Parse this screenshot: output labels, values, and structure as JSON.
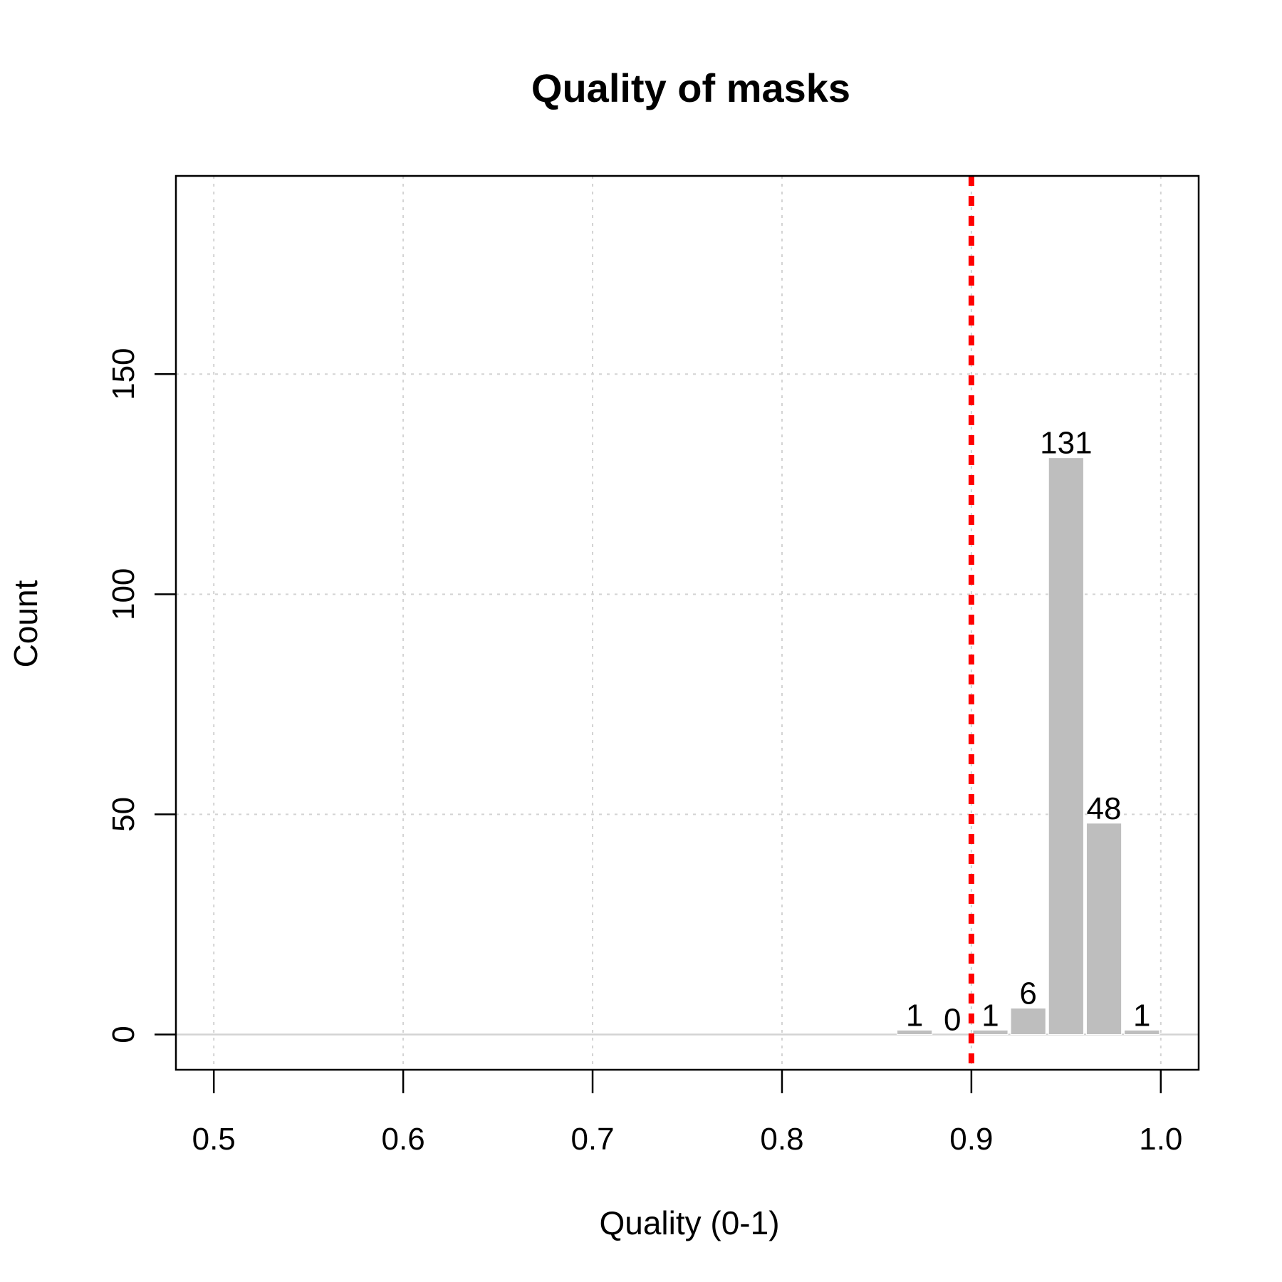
{
  "chart_data": {
    "type": "bar",
    "title": "Quality of masks",
    "xlabel": "Quality (0-1)",
    "ylabel": "Count",
    "xlim": [
      0.48,
      1.02
    ],
    "ylim": [
      -8,
      195
    ],
    "x_ticks": [
      0.5,
      0.6,
      0.7,
      0.8,
      0.9,
      1.0
    ],
    "x_tick_labels": [
      "0.5",
      "0.6",
      "0.7",
      "0.8",
      "0.9",
      "1.0"
    ],
    "y_ticks": [
      0,
      50,
      100,
      150
    ],
    "y_tick_labels": [
      "0",
      "50",
      "100",
      "150"
    ],
    "bins": [
      {
        "start": 0.86,
        "end": 0.88,
        "count": 1,
        "label": "1"
      },
      {
        "start": 0.88,
        "end": 0.9,
        "count": 0,
        "label": "0"
      },
      {
        "start": 0.9,
        "end": 0.92,
        "count": 1,
        "label": "1"
      },
      {
        "start": 0.92,
        "end": 0.94,
        "count": 6,
        "label": "6"
      },
      {
        "start": 0.94,
        "end": 0.96,
        "count": 131,
        "label": "131"
      },
      {
        "start": 0.96,
        "end": 0.98,
        "count": 48,
        "label": "48"
      },
      {
        "start": 0.98,
        "end": 1.0,
        "count": 1,
        "label": "1"
      }
    ],
    "threshold": 0.9,
    "grid": true,
    "colors": {
      "bar": "#bebebe",
      "bar_border": "#ffffff",
      "threshold": "#ff0000",
      "grid": "#d3d3d3",
      "axis": "#000000"
    }
  }
}
